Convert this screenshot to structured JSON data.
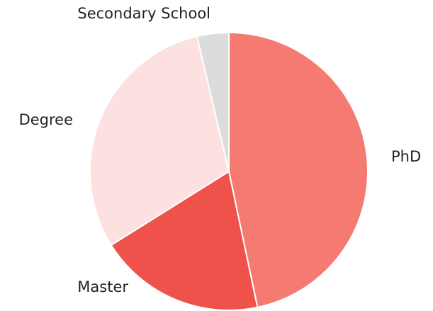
{
  "chart_data": {
    "type": "pie",
    "categories": [
      "PhD",
      "Master",
      "Degree",
      "Secondary School"
    ],
    "values": [
      46.7,
      19.4,
      30.2,
      3.7
    ],
    "colors": [
      "#f47a72",
      "#ef524b",
      "#fde0e0",
      "#dcdcdc"
    ]
  }
}
